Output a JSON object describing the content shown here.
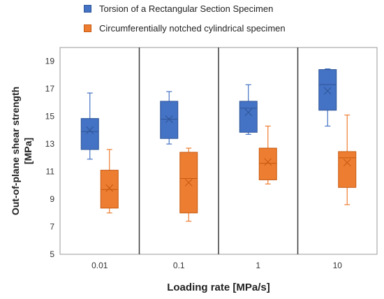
{
  "chart_data": {
    "type": "box",
    "title": "",
    "xlabel": "Loading rate [MPa/s]",
    "ylabel": "Out-of-plane shear strength [MPa]",
    "ylabel_lines": [
      "Out-of-plane shear strength",
      "[MPa]"
    ],
    "ylim": [
      5,
      20
    ],
    "yticks": [
      5,
      7,
      9,
      11,
      13,
      15,
      17,
      19
    ],
    "categories": [
      "0.01",
      "0.1",
      "1",
      "10"
    ],
    "grid": false,
    "category_separators": true,
    "legend_position": "top",
    "series": [
      {
        "name": "Torsion of a Rectangular Section Specimen",
        "color": "#4472C4",
        "edge": "#2F5597",
        "boxes": [
          {
            "min": 11.9,
            "q1": 12.6,
            "median": 13.9,
            "q3": 14.85,
            "max": 16.7,
            "mean": 14.0
          },
          {
            "min": 13.0,
            "q1": 13.4,
            "median": 14.8,
            "q3": 16.1,
            "max": 16.8,
            "mean": 14.8
          },
          {
            "min": 13.7,
            "q1": 13.85,
            "median": 15.6,
            "q3": 16.1,
            "max": 17.3,
            "mean": 15.3
          },
          {
            "min": 14.3,
            "q1": 15.45,
            "median": 17.3,
            "q3": 18.4,
            "max": 18.45,
            "mean": 16.85
          }
        ]
      },
      {
        "name": "Circumferentially notched cylindrical specimen",
        "color": "#ED7D31",
        "edge": "#C55A11",
        "boxes": [
          {
            "min": 8.0,
            "q1": 8.35,
            "median": 9.7,
            "q3": 11.1,
            "max": 12.6,
            "mean": 9.8
          },
          {
            "min": 7.4,
            "q1": 8.0,
            "median": 10.5,
            "q3": 12.4,
            "max": 12.7,
            "mean": 10.2
          },
          {
            "min": 10.1,
            "q1": 10.4,
            "median": 11.6,
            "q3": 12.7,
            "max": 14.3,
            "mean": 11.7
          },
          {
            "min": 8.6,
            "q1": 9.85,
            "median": 12.0,
            "q3": 12.45,
            "max": 15.1,
            "mean": 11.65
          }
        ]
      }
    ]
  }
}
